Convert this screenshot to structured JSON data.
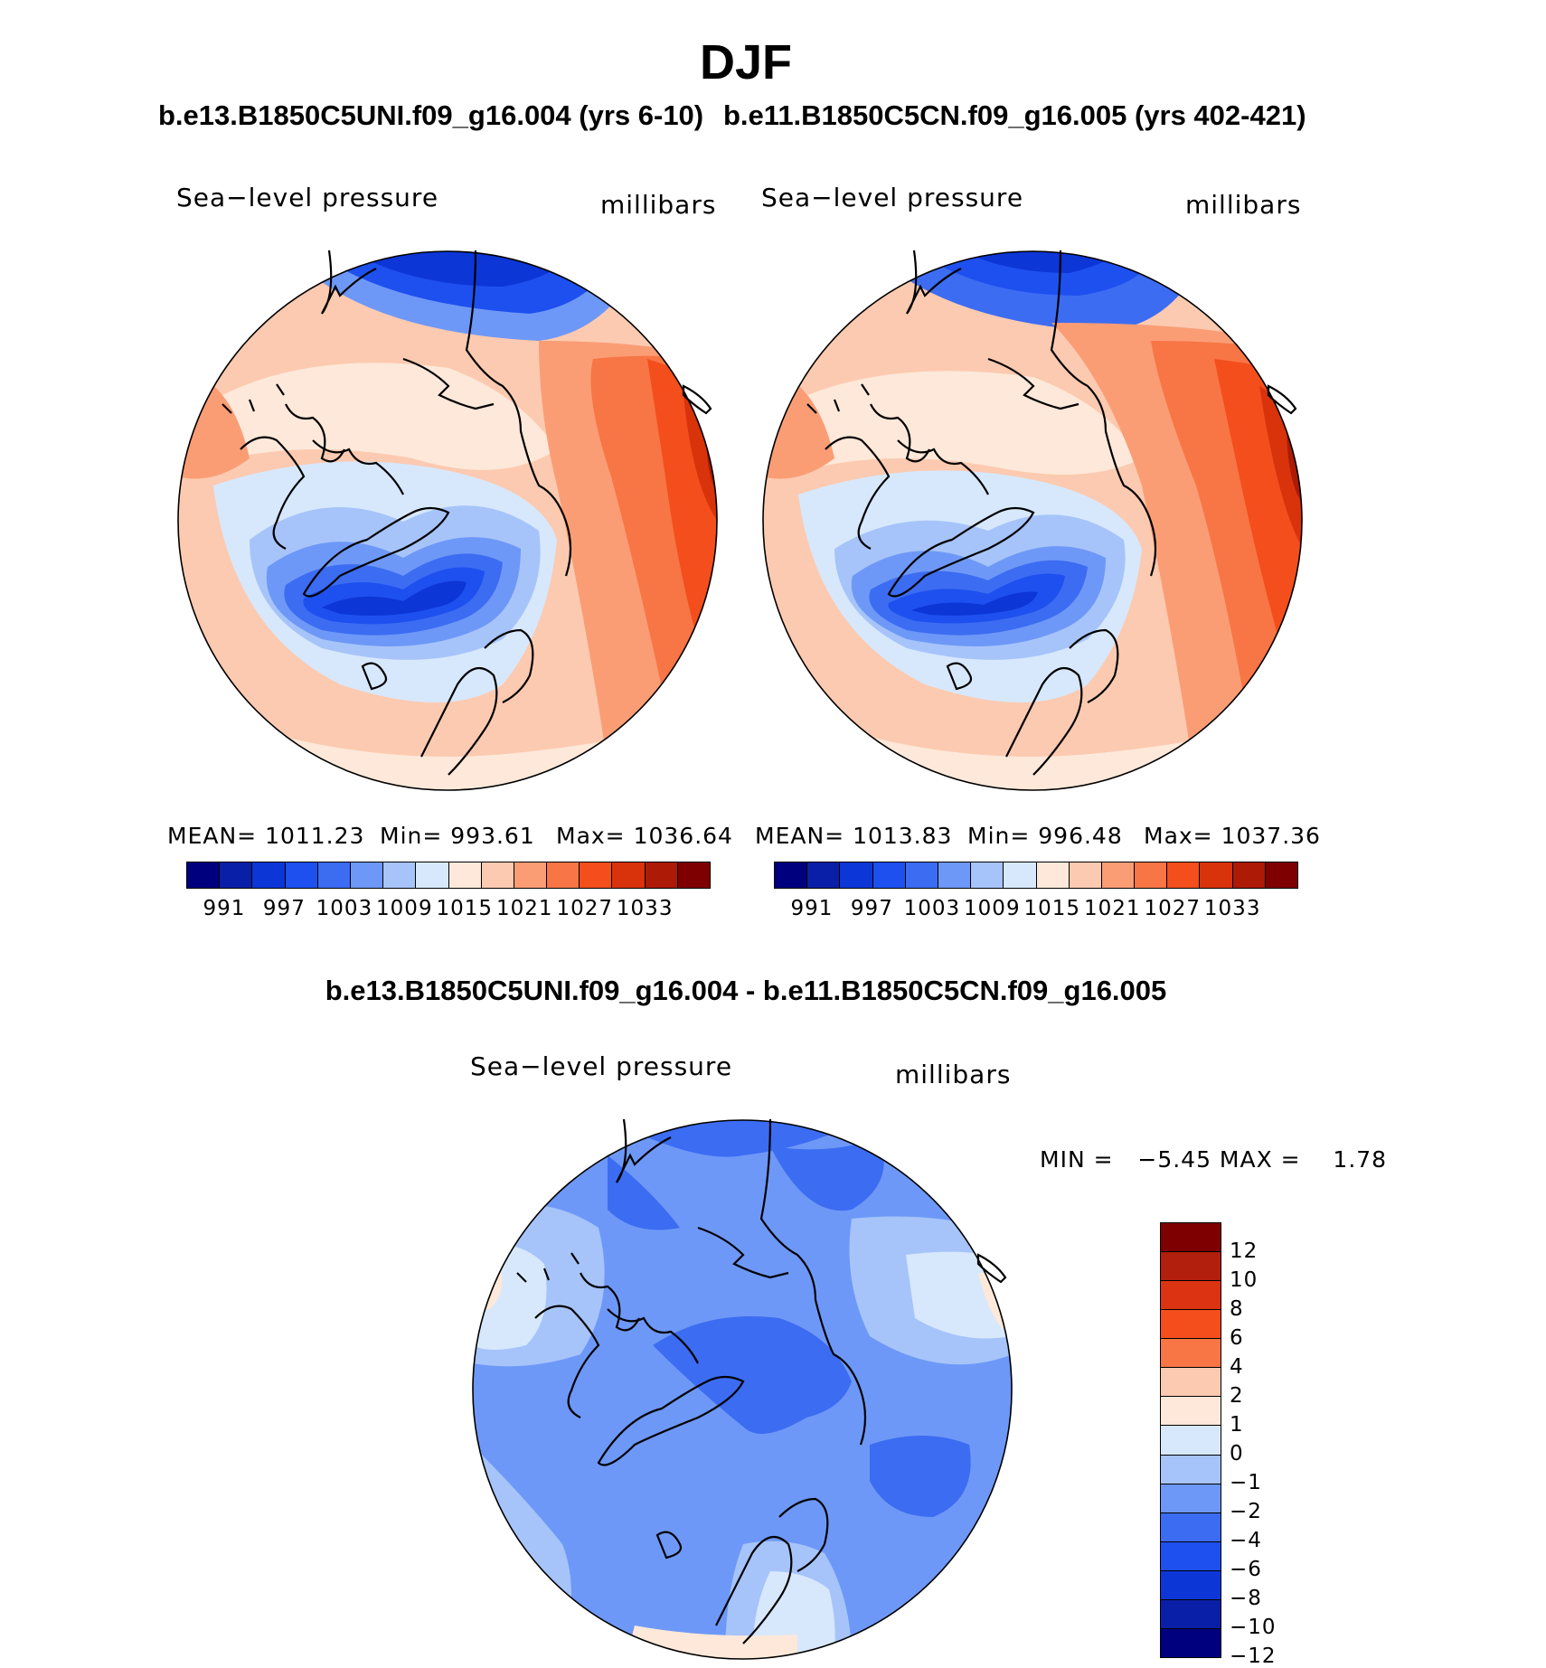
{
  "title": "DJF",
  "panels": [
    {
      "case_title": "b.e13.B1850C5UNI.f09_g16.004 (yrs 6-10)",
      "variable": "Sea−level pressure",
      "units": "millibars",
      "stats": {
        "mean": "MEAN= 1011.23",
        "min": "Min= 993.61",
        "max": "Max= 1036.64"
      }
    },
    {
      "case_title": "b.e11.B1850C5CN.f09_g16.005 (yrs 402-421)",
      "variable": "Sea−level pressure",
      "units": "millibars",
      "stats": {
        "mean": "MEAN= 1013.83",
        "min": "Min= 996.48",
        "max": "Max= 1037.36"
      }
    }
  ],
  "abs_colorbar": {
    "colors": [
      "#00007f",
      "#0a1fa8",
      "#0d36d6",
      "#1e50ef",
      "#3c6cf2",
      "#6e98f7",
      "#a6c4fa",
      "#d7e8fd",
      "#fde8d9",
      "#fccab0",
      "#fa9d75",
      "#f87545",
      "#f34e1c",
      "#d9330c",
      "#ad1a06",
      "#7e0000"
    ],
    "labels": [
      "991",
      "997",
      "1003",
      "1009",
      "1015",
      "1021",
      "1027",
      "1033"
    ]
  },
  "difference": {
    "title": "b.e13.B1850C5UNI.f09_g16.004 - b.e11.B1850C5CN.f09_g16.005",
    "variable": "Sea−level pressure",
    "units": "millibars",
    "minmax": "MIN =   −5.45 MAX =    1.78",
    "colorbar": {
      "colors_top_to_bottom": [
        "#7e0000",
        "#b21f0c",
        "#dc3412",
        "#f34e1c",
        "#f87545",
        "#fccab0",
        "#fde8d9",
        "#d7e8fd",
        "#a6c4fa",
        "#6e98f7",
        "#3c6cf2",
        "#1e50ef",
        "#0d36d6",
        "#0a1fa8",
        "#00007f"
      ],
      "labels": [
        "12",
        "10",
        "8",
        "6",
        "4",
        "2",
        "1",
        "0",
        "−1",
        "−2",
        "−4",
        "−6",
        "−8",
        "−10",
        "−12"
      ]
    }
  },
  "map_colors": {
    "d_low1": "#0d36d6",
    "d_low2": "#1e50ef",
    "d_low3": "#3c6cf2",
    "d_low4": "#6e98f7",
    "d_low5": "#a6c4fa",
    "d_low6": "#d7e8fd",
    "d_hi1": "#fde8d9",
    "d_hi2": "#fccab0",
    "d_hi3": "#fa9d75",
    "d_hi4": "#f87545",
    "d_hi5": "#f34e1c",
    "d_hi6": "#d9330c",
    "d_hi7": "#ad1a06",
    "diff_base": "#6e98f7",
    "diff_mid": "#3c6cf2",
    "diff_light": "#a6c4fa",
    "diff_pale": "#d7e8fd",
    "diff_pos": "#fde8d9"
  }
}
